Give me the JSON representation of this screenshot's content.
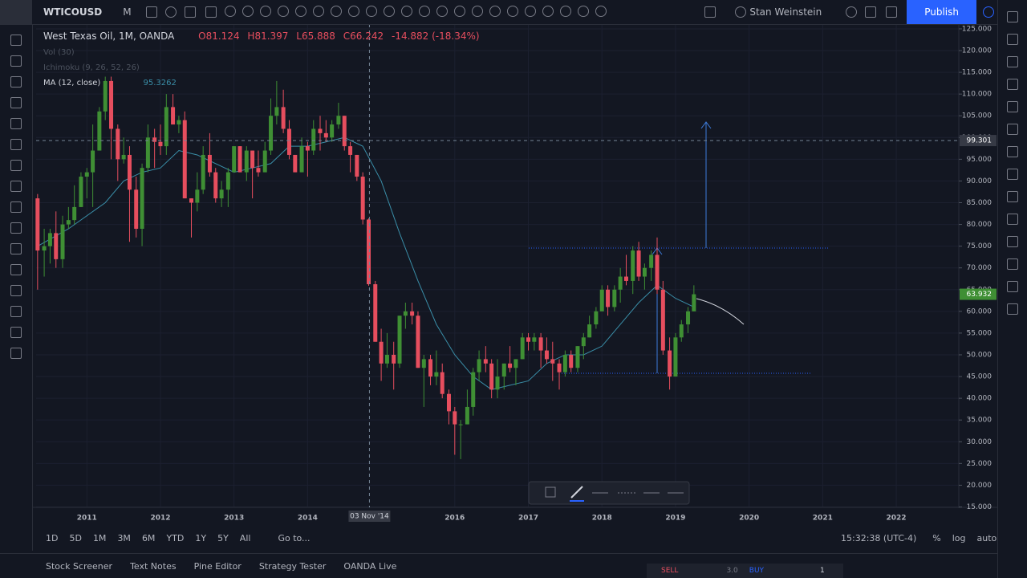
{
  "ui": {
    "symbol": "WTICOUSD",
    "interval": "M",
    "user": "Stan Weinstein",
    "publish": "Publish",
    "legend": {
      "title": "West Texas Oil, 1M, OANDA",
      "open": "O81.124",
      "high": "H81.397",
      "low": "L65.888",
      "close": "C66.242",
      "change": "-14.882 (-18.34%)"
    },
    "indicators": [
      {
        "name": "Vol (30)"
      },
      {
        "name": "Ichimoku (9, 26, 52, 26)"
      },
      {
        "name": "MA (12, close)",
        "value": "95.3262"
      }
    ],
    "timeframes": [
      "1D",
      "5D",
      "1M",
      "3M",
      "6M",
      "YTD",
      "1Y",
      "5Y",
      "All"
    ],
    "goto": "Go to...",
    "clock": "15:32:38 (UTC-4)",
    "scale_options": [
      "%",
      "log",
      "auto"
    ],
    "tabs": [
      "Stock Screener",
      "Text Notes",
      "Pine Editor",
      "Strategy Tester",
      "OANDA Live"
    ],
    "trade": {
      "sell": "SELL",
      "spread": "3.0",
      "buy": "BUY",
      "quantity": "1"
    }
  },
  "chart_data": {
    "type": "candlestick",
    "up_color": "#3f8f34",
    "down_color": "#e64e5e",
    "grid": true,
    "x": [
      2010.33,
      2010.42,
      2010.5,
      2010.58,
      2010.67,
      2010.75,
      2010.83,
      2010.92,
      2011,
      2011.08,
      2011.17,
      2011.25,
      2011.33,
      2011.42,
      2011.5,
      2011.58,
      2011.67,
      2011.75,
      2011.83,
      2011.92,
      2012,
      2012.08,
      2012.17,
      2012.25,
      2012.33,
      2012.42,
      2012.5,
      2012.58,
      2012.67,
      2012.75,
      2012.83,
      2012.92,
      2013,
      2013.08,
      2013.17,
      2013.25,
      2013.33,
      2013.42,
      2013.5,
      2013.58,
      2013.67,
      2013.75,
      2013.83,
      2013.92,
      2014,
      2014.08,
      2014.17,
      2014.25,
      2014.33,
      2014.42,
      2014.5,
      2014.58,
      2014.67,
      2014.75,
      2014.83,
      2014.92,
      2015,
      2015.08,
      2015.17,
      2015.25,
      2015.33,
      2015.42,
      2015.5,
      2015.58,
      2015.67,
      2015.75,
      2015.83,
      2015.92,
      2016,
      2016.08,
      2016.17,
      2016.25,
      2016.33,
      2016.42,
      2016.5,
      2016.58,
      2016.67,
      2016.75,
      2016.83,
      2016.92,
      2017,
      2017.08,
      2017.17,
      2017.25,
      2017.33,
      2017.42,
      2017.5,
      2017.58,
      2017.67,
      2017.75,
      2017.83,
      2017.92,
      2018,
      2018.08,
      2018.17,
      2018.25,
      2018.33,
      2018.42,
      2018.5,
      2018.58,
      2018.67,
      2018.75,
      2018.83,
      2018.92,
      2019,
      2019.08,
      2019.17,
      2019.25
    ],
    "open": [
      86,
      74,
      75,
      78,
      72,
      80,
      81,
      84,
      91,
      92,
      97,
      106,
      113,
      102,
      95,
      96,
      88,
      79,
      93,
      100,
      99,
      98,
      107,
      103,
      104,
      86,
      85,
      88,
      96,
      92,
      86,
      88,
      92,
      98,
      92,
      97,
      93,
      92,
      97,
      105,
      107,
      102,
      96,
      92,
      98,
      97,
      102,
      101,
      100,
      103,
      105,
      98,
      96,
      91,
      81.124,
      66.242,
      53,
      48,
      50,
      48,
      59,
      60,
      59,
      47,
      49,
      45,
      46,
      41,
      37,
      34,
      34,
      38,
      46,
      49,
      48,
      42,
      45,
      48,
      47,
      49,
      54,
      53,
      54,
      51,
      49,
      48,
      46,
      50,
      47,
      52,
      54,
      57,
      60,
      65,
      61,
      65,
      68,
      67,
      74,
      68,
      70,
      73,
      65,
      51,
      45,
      54,
      57,
      60
    ],
    "high": [
      87,
      79,
      79,
      83,
      82,
      84,
      89,
      92,
      93,
      103,
      107,
      114,
      114,
      103,
      100,
      98,
      91,
      94,
      103,
      102,
      103,
      110,
      110,
      105,
      106,
      86,
      92,
      98,
      101,
      93,
      90,
      93,
      98,
      98,
      98,
      97,
      97,
      99,
      109,
      113,
      111,
      104,
      96,
      100,
      99,
      104,
      105,
      104,
      104,
      108,
      105,
      99,
      96,
      92,
      81.397,
      67,
      56,
      55,
      53,
      59,
      62,
      62,
      60,
      50,
      50,
      51,
      48,
      42,
      38,
      35,
      42,
      47,
      51,
      52,
      49,
      49,
      48,
      52,
      49,
      55,
      55,
      55,
      55,
      54,
      53,
      49,
      51,
      51,
      52,
      55,
      59,
      61,
      66,
      66,
      66,
      70,
      73,
      75,
      76,
      71,
      74,
      77,
      67,
      54,
      55,
      58,
      61,
      66
    ],
    "low": [
      65,
      68,
      71,
      70,
      70,
      79,
      80,
      84,
      86,
      84,
      97,
      104,
      95,
      90,
      94,
      76,
      77,
      75,
      92,
      93,
      96,
      96,
      103,
      101,
      86,
      77,
      83,
      87,
      91,
      85,
      84,
      84,
      92,
      92,
      90,
      86,
      91,
      92,
      96,
      103,
      101,
      95,
      92,
      92,
      91,
      96,
      97,
      99,
      99,
      102,
      97,
      92,
      90,
      80,
      65.888,
      53,
      44,
      47,
      42,
      47,
      56,
      57,
      47,
      38,
      43,
      43,
      40,
      34,
      27,
      26,
      34,
      36,
      44,
      46,
      40,
      40,
      42,
      46,
      43,
      49,
      51,
      51,
      47,
      48,
      44,
      42,
      45,
      46,
      46,
      49,
      54,
      56,
      60,
      59,
      60,
      62,
      66,
      64,
      67,
      65,
      67,
      64,
      50,
      42,
      45,
      53,
      55,
      60
    ],
    "close": [
      74,
      75,
      78,
      72,
      80,
      81,
      84,
      91,
      92,
      97,
      106,
      113,
      102,
      95,
      96,
      88,
      79,
      93,
      100,
      99,
      98,
      107,
      103,
      104,
      86,
      85,
      88,
      96,
      92,
      86,
      88,
      92,
      98,
      92,
      97,
      93,
      92,
      97,
      105,
      107,
      102,
      96,
      92,
      98,
      97,
      102,
      101,
      100,
      103,
      105,
      98,
      96,
      91,
      81.124,
      66.242,
      53,
      48,
      50,
      48,
      59,
      60,
      59,
      47,
      49,
      45,
      46,
      41,
      37,
      34,
      34,
      38,
      46,
      49,
      48,
      42,
      45,
      48,
      47,
      49,
      54,
      53,
      54,
      51,
      49,
      48,
      46,
      50,
      47,
      52,
      54,
      57,
      60,
      65,
      61,
      65,
      68,
      67,
      74,
      68,
      70,
      73,
      65,
      51,
      45,
      54,
      57,
      60,
      63.932
    ],
    "ma": {
      "color": "#3a8ea8",
      "x": [
        2010.33,
        2010.75,
        2011.25,
        2011.5,
        2011.75,
        2012,
        2012.25,
        2012.5,
        2012.75,
        2013,
        2013.25,
        2013.5,
        2013.75,
        2014,
        2014.25,
        2014.5,
        2014.75,
        2015,
        2015.25,
        2015.5,
        2015.75,
        2016,
        2016.25,
        2016.5,
        2016.75,
        2017,
        2017.25,
        2017.5,
        2017.75,
        2018,
        2018.25,
        2018.5,
        2018.75,
        2019,
        2019.25
      ],
      "values": [
        75,
        79,
        85,
        90,
        92,
        93,
        97,
        96,
        94,
        92,
        93,
        94,
        98,
        98,
        99,
        100,
        98,
        90,
        78,
        67,
        57,
        50,
        45,
        42,
        43,
        44,
        48,
        50,
        50,
        52,
        57,
        62,
        66,
        63,
        61
      ]
    },
    "xlim": [
      2010.31,
      2022.85
    ],
    "xticks": [
      2011,
      2012,
      2013,
      2014,
      2016,
      2017,
      2018,
      2019,
      2020,
      2021,
      2022
    ],
    "ylim": [
      14.9,
      126.1
    ],
    "yticks": [
      {
        "value": 15,
        "label": "15.000"
      },
      {
        "value": 20,
        "label": "20.000"
      },
      {
        "value": 25,
        "label": "25.000"
      },
      {
        "value": 30,
        "label": "30.000"
      },
      {
        "value": 35,
        "label": "35.000"
      },
      {
        "value": 40,
        "label": "40.000"
      },
      {
        "value": 45,
        "label": "45.000"
      },
      {
        "value": 50,
        "label": "50.000"
      },
      {
        "value": 55,
        "label": "55.000"
      },
      {
        "value": 60,
        "label": "60.000"
      },
      {
        "value": 65,
        "label": "65.000"
      },
      {
        "value": 70,
        "label": "70.000"
      },
      {
        "value": 75,
        "label": "75.000"
      },
      {
        "value": 80,
        "label": "80.000"
      },
      {
        "value": 85,
        "label": "85.000"
      },
      {
        "value": 90,
        "label": "90.000"
      },
      {
        "value": 95,
        "label": "95.000"
      },
      {
        "value": 100,
        "label": "100.000"
      },
      {
        "value": 105,
        "label": "105.000"
      },
      {
        "value": 110,
        "label": "110.000"
      },
      {
        "value": 115,
        "label": "115.000"
      },
      {
        "value": 120,
        "label": "120.000"
      },
      {
        "value": 125,
        "label": "125.000"
      }
    ],
    "crosshair": {
      "x": 2014.84,
      "x_label": "03 Nov '14",
      "y": 99.301
    },
    "last_price": 63.932
  }
}
